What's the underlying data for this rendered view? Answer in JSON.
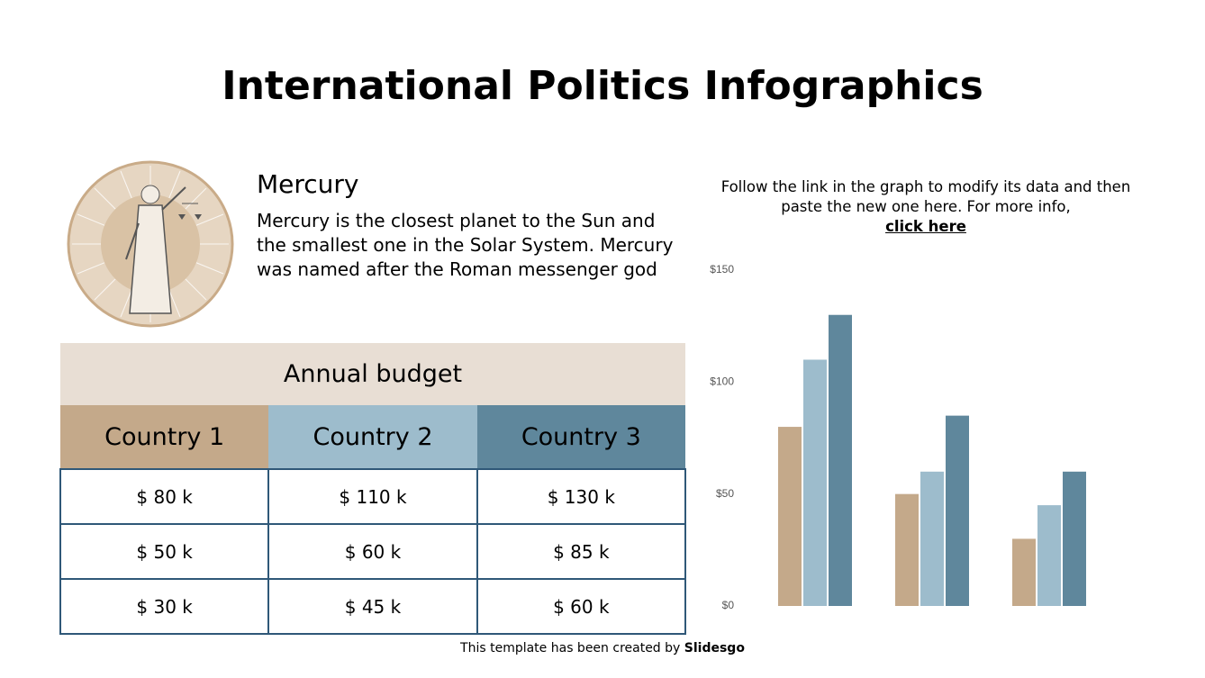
{
  "title": "International Politics Infographics",
  "profile": {
    "heading": "Mercury",
    "body": "Mercury is the closest planet to the Sun and the smallest one in the Solar System. Mercury was named after the Roman messenger god"
  },
  "table": {
    "title": "Annual budget",
    "headers": [
      "Country 1",
      "Country 2",
      "Country 3"
    ],
    "rows": [
      [
        "$ 80 k",
        "$ 110 k",
        "$ 130 k"
      ],
      [
        "$ 50 k",
        "$ 60 k",
        "$ 85 k"
      ],
      [
        "$ 30 k",
        "$ 45 k",
        "$ 60 k"
      ]
    ]
  },
  "note": {
    "text": "Follow the link in the graph to modify its data and then paste the new one here. For more info,",
    "link": "click here"
  },
  "footer": {
    "text": "This template has been created by",
    "brand": "Slidesgo"
  },
  "chart_data": {
    "type": "bar",
    "categories": [
      null,
      null,
      null
    ],
    "series": [
      {
        "color": "#c4a98a",
        "values": [
          80,
          50,
          30
        ]
      },
      {
        "color": "#9dbccc",
        "values": [
          110,
          60,
          45
        ]
      },
      {
        "color": "#5f879c",
        "values": [
          130,
          85,
          60
        ]
      }
    ],
    "ylim": [
      0,
      150
    ],
    "yticks": [
      {
        "value": 0,
        "label": "$0"
      },
      {
        "value": 50,
        "label": "$50"
      },
      {
        "value": 100,
        "label": "$100"
      },
      {
        "value": 150,
        "label": "$150"
      }
    ],
    "grid": false
  }
}
